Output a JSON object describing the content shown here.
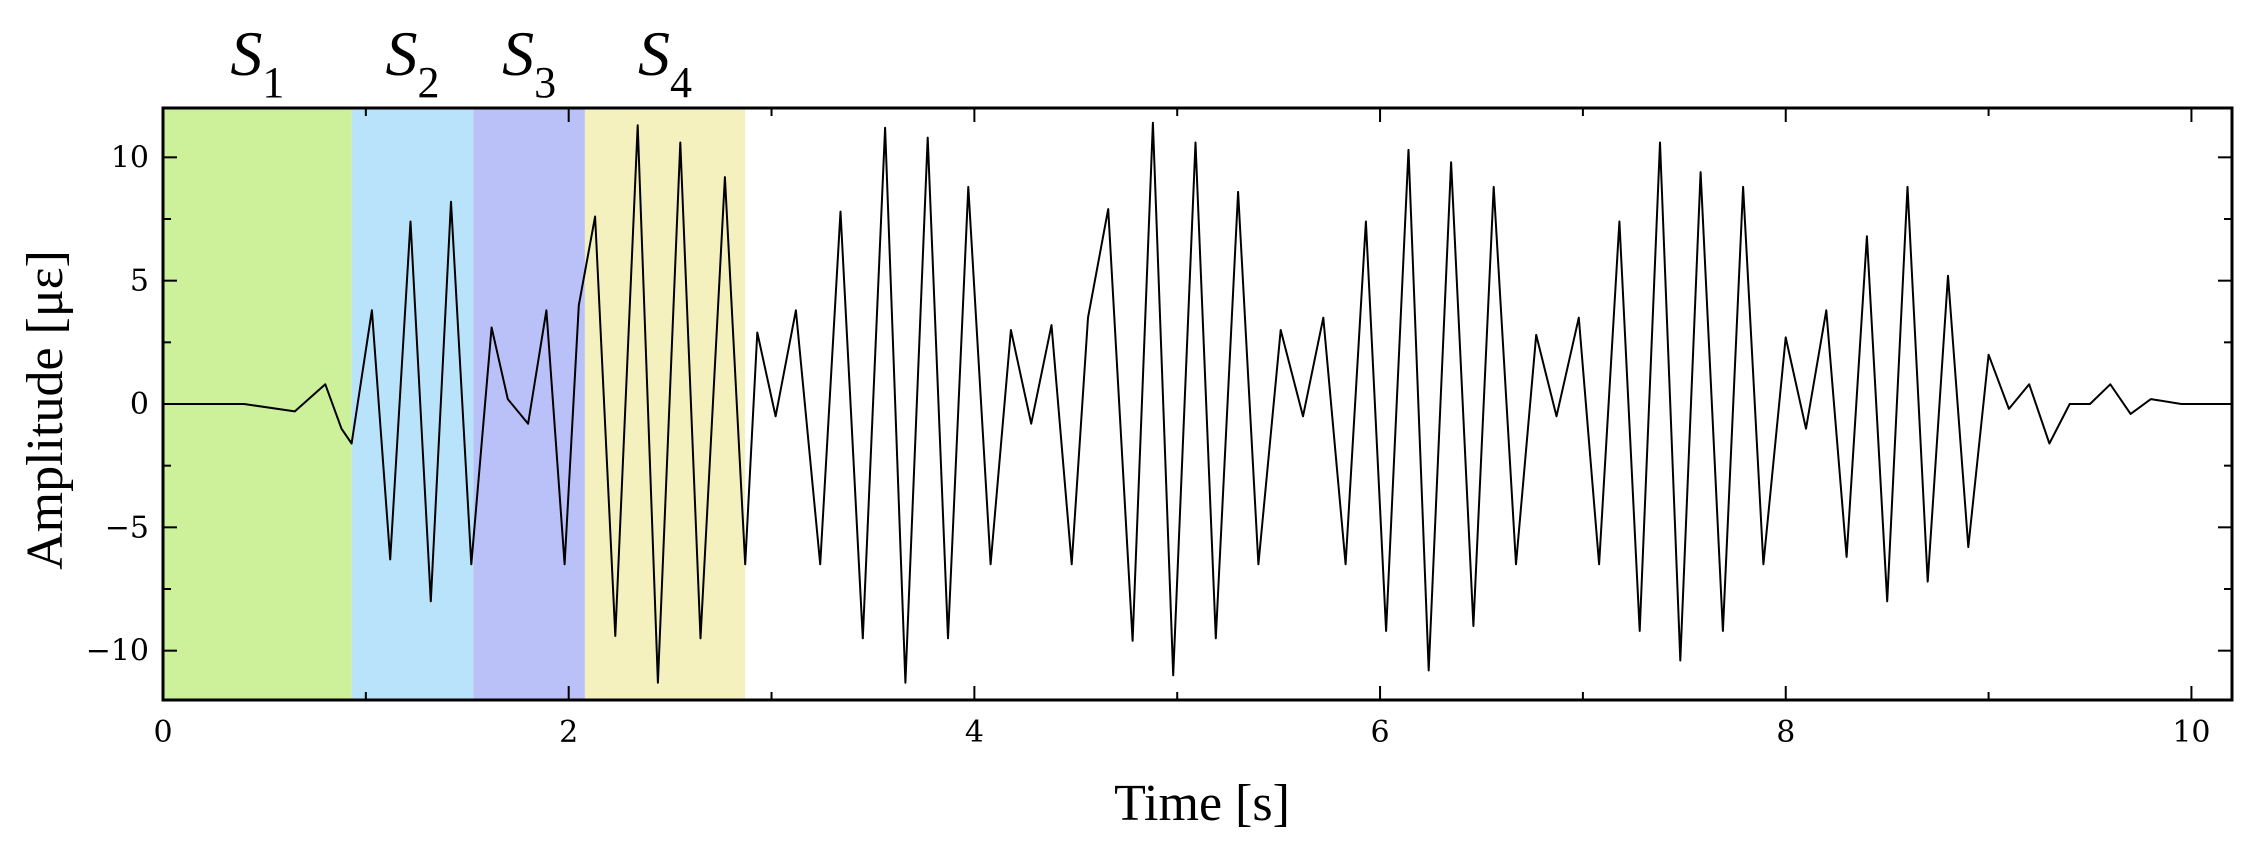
{
  "chart_data": {
    "type": "line",
    "xlabel": "Time [s]",
    "ylabel": "Amplitude [με]",
    "xlim": [
      0,
      10.2
    ],
    "ylim": [
      -12,
      12
    ],
    "xticks": [
      0,
      2,
      4,
      6,
      8,
      10
    ],
    "xtick_labels": [
      "0",
      "2",
      "4",
      "6",
      "8",
      "10"
    ],
    "yticks": [
      10,
      5,
      0,
      -5,
      -10
    ],
    "ytick_labels": [
      "10",
      "5",
      "0",
      "−5",
      "−10"
    ],
    "grid": false,
    "series": [
      {
        "color": "#000000",
        "x": [
          0,
          0.4,
          0.65,
          0.8,
          0.88,
          0.93,
          1.03,
          1.12,
          1.22,
          1.32,
          1.42,
          1.52,
          1.62,
          1.7,
          1.8,
          1.89,
          1.98,
          2.05,
          2.13,
          2.23,
          2.34,
          2.44,
          2.55,
          2.65,
          2.77,
          2.87,
          2.93,
          3.02,
          3.12,
          3.24,
          3.34,
          3.45,
          3.56,
          3.66,
          3.77,
          3.87,
          3.97,
          4.08,
          4.18,
          4.28,
          4.38,
          4.48,
          4.56,
          4.66,
          4.78,
          4.88,
          4.98,
          5.09,
          5.19,
          5.3,
          5.4,
          5.51,
          5.62,
          5.72,
          5.83,
          5.93,
          6.03,
          6.14,
          6.24,
          6.35,
          6.46,
          6.56,
          6.67,
          6.77,
          6.87,
          6.98,
          7.08,
          7.18,
          7.28,
          7.38,
          7.48,
          7.58,
          7.69,
          7.79,
          7.89,
          8.0,
          8.1,
          8.2,
          8.3,
          8.4,
          8.5,
          8.6,
          8.7,
          8.8,
          8.9,
          9.0,
          9.1,
          9.2,
          9.3,
          9.4,
          9.5,
          9.6,
          9.7,
          9.8,
          9.95,
          10.2
        ],
        "y": [
          0,
          0,
          -0.3,
          0.8,
          -1.0,
          -1.6,
          3.8,
          -6.3,
          7.4,
          -8.0,
          8.2,
          -6.5,
          3.1,
          0.2,
          -0.8,
          3.8,
          -6.5,
          4.0,
          7.6,
          -9.4,
          11.3,
          -11.3,
          10.6,
          -9.5,
          9.2,
          -6.5,
          2.9,
          -0.5,
          3.8,
          -6.5,
          7.8,
          -9.5,
          11.2,
          -11.3,
          10.8,
          -9.5,
          8.8,
          -6.5,
          3.0,
          -0.8,
          3.2,
          -6.5,
          3.5,
          7.9,
          -9.6,
          11.4,
          -11.0,
          10.6,
          -9.5,
          8.6,
          -6.5,
          3.0,
          -0.5,
          3.5,
          -6.5,
          7.4,
          -9.2,
          10.3,
          -10.8,
          9.8,
          -9.0,
          8.8,
          -6.5,
          2.8,
          -0.5,
          3.5,
          -6.5,
          7.4,
          -9.2,
          10.6,
          -10.4,
          9.4,
          -9.2,
          8.8,
          -6.5,
          2.7,
          -1.0,
          3.8,
          -6.2,
          6.8,
          -8.0,
          8.8,
          -7.2,
          5.2,
          -5.8,
          2.0,
          -0.2,
          0.8,
          -1.6,
          0.0,
          0.0,
          0.8,
          -0.4,
          0.2,
          0.0,
          0.0
        ]
      }
    ],
    "regions": [
      {
        "label": "S",
        "sub": "1",
        "x0": 0.0,
        "x1": 0.93,
        "color": "#cdf09b"
      },
      {
        "label": "S",
        "sub": "2",
        "x0": 0.93,
        "x1": 1.53,
        "color": "#b8e3fb"
      },
      {
        "label": "S",
        "sub": "3",
        "x0": 1.53,
        "x1": 2.08,
        "color": "#b9c1f8"
      },
      {
        "label": "S",
        "sub": "4",
        "x0": 2.08,
        "x1": 2.87,
        "color": "#f4f1bf"
      }
    ]
  }
}
